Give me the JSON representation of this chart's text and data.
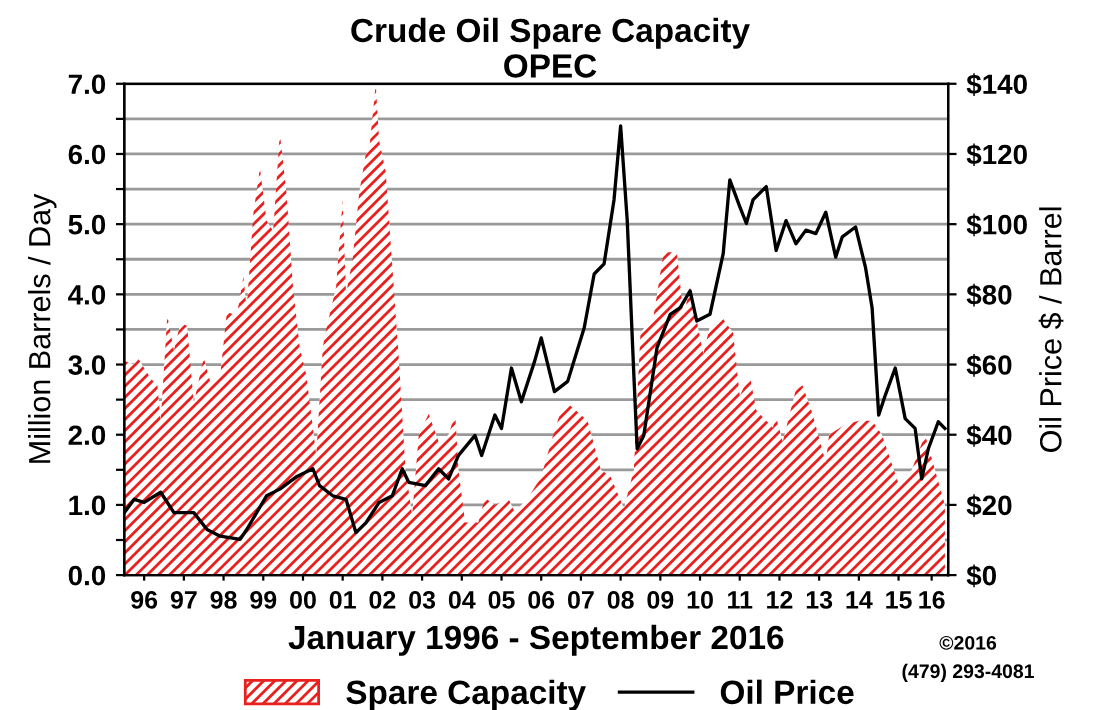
{
  "chart_data": {
    "type": "area",
    "title": "Crude Oil Spare Capacity",
    "subtitle": "OPEC",
    "xlabel": "January 1996 - September 2016",
    "ylabel": "Million Barrels / Day",
    "y2label": "Oil Price $ / Barrel",
    "annotations": [
      "©2016",
      "(479) 293-4081"
    ],
    "series": [
      {
        "name": "Spare Capacity",
        "color": "#e8201e",
        "x": [
          "1996-01",
          "1996-04",
          "1996-05",
          "1996-09",
          "1996-11",
          "1996-12",
          "1997-02",
          "1997-04",
          "1997-06",
          "1997-08",
          "1997-10",
          "1998-01",
          "1998-03",
          "1998-06",
          "1998-08",
          "1998-11",
          "1999-01",
          "1999-02",
          "1999-04",
          "1999-06",
          "1999-08",
          "1999-10",
          "1999-12",
          "2000-02",
          "2000-04",
          "2000-06",
          "2000-08",
          "2000-10",
          "2000-11",
          "2001-01",
          "2001-02",
          "2001-04",
          "2001-05",
          "2001-07",
          "2001-08",
          "2001-10",
          "2001-12",
          "2002-02",
          "2002-03",
          "2002-05",
          "2002-06",
          "2002-08",
          "2002-10",
          "2002-12",
          "2003-02",
          "2003-04",
          "2003-06",
          "2003-09",
          "2003-12",
          "2004-03",
          "2004-05",
          "2004-06",
          "2004-08",
          "2004-12",
          "2005-02",
          "2005-05",
          "2005-09",
          "2005-11",
          "2006-03",
          "2006-07",
          "2006-10",
          "2007-01",
          "2007-03",
          "2007-09",
          "2008-01",
          "2008-04",
          "2008-08",
          "2008-11",
          "2009-01",
          "2009-05",
          "2009-08",
          "2009-12",
          "2010-02",
          "2010-04",
          "2010-08",
          "2010-10",
          "2011-02",
          "2011-05",
          "2011-07",
          "2011-10",
          "2011-12",
          "2012-05",
          "2012-06",
          "2012-08",
          "2012-12",
          "2013-02",
          "2013-05",
          "2013-09",
          "2013-10",
          "2014-03",
          "2014-07",
          "2014-11",
          "2015-02",
          "2015-07",
          "2015-11",
          "2016-03",
          "2016-06",
          "2016-09"
        ],
        "values": [
          3.05,
          3.0,
          3.1,
          2.8,
          2.7,
          2.2,
          3.7,
          3.2,
          3.6,
          3.55,
          2.45,
          3.1,
          2.75,
          2.85,
          3.75,
          3.7,
          4.25,
          3.8,
          5.15,
          5.8,
          5.05,
          4.9,
          6.3,
          5.45,
          4.1,
          3.25,
          2.85,
          2.1,
          1.7,
          3.25,
          3.5,
          3.9,
          4.1,
          5.35,
          4.0,
          4.5,
          5.45,
          6.0,
          6.05,
          7.0,
          6.2,
          5.75,
          4.4,
          3.05,
          1.5,
          0.85,
          2.0,
          2.3,
          1.9,
          2.0,
          2.3,
          1.5,
          0.75,
          0.75,
          1.1,
          1.0,
          1.1,
          0.9,
          1.1,
          1.4,
          1.9,
          2.35,
          2.45,
          2.2,
          1.5,
          1.4,
          0.95,
          1.5,
          3.45,
          3.7,
          4.6,
          4.6,
          3.7,
          4.1,
          3.15,
          3.55,
          3.65,
          3.45,
          2.55,
          2.85,
          2.35,
          2.1,
          2.25,
          1.9,
          2.65,
          2.7,
          2.3,
          1.6,
          2.0,
          2.15,
          2.2,
          2.2,
          2.0,
          1.3,
          1.5,
          2.0,
          1.5,
          1.0
        ]
      },
      {
        "name": "Oil Price",
        "type": "line",
        "axis": "y2",
        "color": "#000000",
        "x": [
          "1996-01",
          "1996-04",
          "1996-07",
          "1996-12",
          "1997-04",
          "1997-10",
          "1998-02",
          "1998-06",
          "1998-12",
          "1999-02",
          "1999-08",
          "1999-12",
          "2000-05",
          "2000-10",
          "2000-12",
          "2001-04",
          "2001-08",
          "2001-11",
          "2002-02",
          "2002-06",
          "2002-10",
          "2003-01",
          "2003-03",
          "2003-08",
          "2003-12",
          "2004-03",
          "2004-06",
          "2004-11",
          "2005-01",
          "2005-05",
          "2005-07",
          "2005-10",
          "2006-01",
          "2006-05",
          "2006-07",
          "2006-11",
          "2007-03",
          "2007-08",
          "2007-11",
          "2008-02",
          "2008-05",
          "2008-07",
          "2008-09",
          "2008-11",
          "2008-12",
          "2009-02",
          "2009-06",
          "2009-10",
          "2010-01",
          "2010-04",
          "2010-06",
          "2010-10",
          "2011-02",
          "2011-04",
          "2011-07",
          "2011-09",
          "2011-11",
          "2012-03",
          "2012-06",
          "2012-09",
          "2012-12",
          "2013-03",
          "2013-06",
          "2013-09",
          "2013-12",
          "2014-02",
          "2014-06",
          "2014-09",
          "2014-11",
          "2015-01",
          "2015-03",
          "2015-06",
          "2015-09",
          "2015-12",
          "2016-02",
          "2016-04",
          "2016-07",
          "2016-09"
        ],
        "values": [
          17.8,
          21.6,
          20.7,
          23.6,
          17.8,
          17.8,
          13.0,
          11.1,
          10.2,
          13.0,
          22.6,
          24.5,
          28,
          30.3,
          25.5,
          22.6,
          21.6,
          12.1,
          14.9,
          20.7,
          22.6,
          30.3,
          26.4,
          25.5,
          30.3,
          27.4,
          34.1,
          39.8,
          34.1,
          45.6,
          41.8,
          59,
          49.4,
          60.9,
          67.6,
          52.3,
          55.2,
          70.5,
          85.8,
          88.7,
          106.9,
          128,
          101,
          57,
          36,
          39.8,
          64.8,
          74.3,
          76.2,
          81,
          72.4,
          74.3,
          91.6,
          112.6,
          105,
          100.2,
          106.9,
          110.7,
          92.5,
          101,
          94.4,
          98.3,
          97.3,
          103.4,
          90.6,
          96.4,
          99.2,
          87.7,
          76.2,
          45.6,
          51.3,
          59,
          44.6,
          41.8,
          27.4,
          36,
          43.7,
          41.8
        ]
      }
    ],
    "xlim": [
      "1996-01",
      "2016-10"
    ],
    "xticks": [
      {
        "value": "1996-07",
        "label": "96"
      },
      {
        "value": "1997-07",
        "label": "97"
      },
      {
        "value": "1998-07",
        "label": "98"
      },
      {
        "value": "1999-07",
        "label": "99"
      },
      {
        "value": "2000-07",
        "label": "00"
      },
      {
        "value": "2001-07",
        "label": "01"
      },
      {
        "value": "2002-07",
        "label": "02"
      },
      {
        "value": "2003-07",
        "label": "03"
      },
      {
        "value": "2004-07",
        "label": "04"
      },
      {
        "value": "2005-07",
        "label": "05"
      },
      {
        "value": "2006-07",
        "label": "06"
      },
      {
        "value": "2007-07",
        "label": "07"
      },
      {
        "value": "2008-07",
        "label": "08"
      },
      {
        "value": "2009-07",
        "label": "09"
      },
      {
        "value": "2010-07",
        "label": "10"
      },
      {
        "value": "2011-07",
        "label": "11"
      },
      {
        "value": "2012-07",
        "label": "12"
      },
      {
        "value": "2013-07",
        "label": "13"
      },
      {
        "value": "2014-07",
        "label": "14"
      },
      {
        "value": "2015-07",
        "label": "15"
      },
      {
        "value": "2016-05",
        "label": "16"
      }
    ],
    "ylim": [
      0,
      7
    ],
    "yticks": [
      {
        "value": 0,
        "label": "0.0"
      },
      {
        "value": 0.5,
        "label": null
      },
      {
        "value": 1,
        "label": "1.0"
      },
      {
        "value": 1.5,
        "label": null
      },
      {
        "value": 2,
        "label": "2.0"
      },
      {
        "value": 2.5,
        "label": null
      },
      {
        "value": 3,
        "label": "3.0"
      },
      {
        "value": 3.5,
        "label": null
      },
      {
        "value": 4,
        "label": "4.0"
      },
      {
        "value": 4.5,
        "label": null
      },
      {
        "value": 5,
        "label": "5.0"
      },
      {
        "value": 5.5,
        "label": null
      },
      {
        "value": 6,
        "label": "6.0"
      },
      {
        "value": 6.5,
        "label": null
      },
      {
        "value": 7,
        "label": "7.0"
      }
    ],
    "y2lim": [
      0,
      140
    ],
    "y2ticks": [
      {
        "value": 0,
        "label": "$0"
      },
      {
        "value": 20,
        "label": "$20"
      },
      {
        "value": 40,
        "label": "$40"
      },
      {
        "value": 60,
        "label": "$60"
      },
      {
        "value": 80,
        "label": "$80"
      },
      {
        "value": 100,
        "label": "$100"
      },
      {
        "value": 120,
        "label": "$120"
      },
      {
        "value": 140,
        "label": "$140"
      }
    ],
    "grid": "y",
    "legend": "bottom"
  }
}
